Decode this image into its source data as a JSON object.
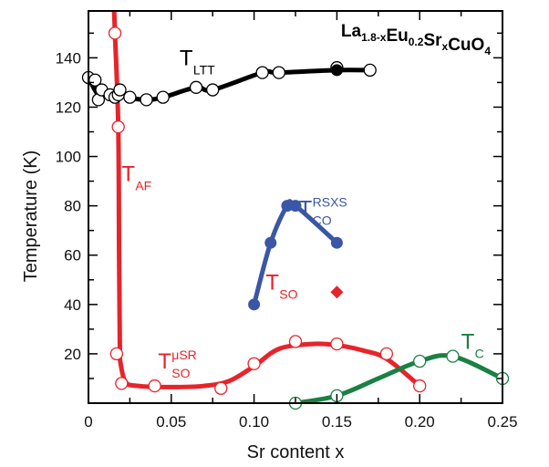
{
  "chart_data": {
    "type": "scatter",
    "title": "La1.8-xEu0.2SrxCuO4",
    "title_parts": [
      {
        "text": "La",
        "sub": "1.8-x"
      },
      {
        "text": "Eu",
        "sub": "0.2"
      },
      {
        "text": "Sr",
        "sub": "x"
      },
      {
        "text": "CuO",
        "sub": "4"
      }
    ],
    "xlabel": "Sr content x",
    "ylabel": "Temperature (K)",
    "xlim": [
      0,
      0.25
    ],
    "ylim": [
      0,
      159
    ],
    "x_ticks": [
      0,
      0.05,
      0.1,
      0.15,
      0.2,
      0.25
    ],
    "x_tick_labels": [
      "0",
      "0.05",
      "0.10",
      "0.15",
      "0.20",
      "0.25"
    ],
    "x_minor_step": 0.025,
    "y_ticks": [
      20,
      40,
      60,
      80,
      100,
      120,
      140
    ],
    "y_tick_labels": [
      "20",
      "40",
      "60",
      "80",
      "100",
      "120",
      "140"
    ],
    "y_minor_step": 10,
    "grid": false,
    "legend": "none",
    "series": [
      {
        "name": "T_LTT",
        "color": "#000000",
        "marker": "open-circle",
        "line": "smooth",
        "x": [
          0.0,
          0.004,
          0.006,
          0.008,
          0.013,
          0.016,
          0.018,
          0.019,
          0.025,
          0.035,
          0.045,
          0.065,
          0.075,
          0.105,
          0.115,
          0.15,
          0.17
        ],
        "y": [
          132,
          131,
          123,
          127,
          125,
          124,
          125,
          127,
          124,
          123,
          124,
          128,
          127,
          134,
          134,
          136,
          135
        ],
        "line_x": [
          0.0,
          0.006,
          0.013,
          0.019,
          0.025,
          0.035,
          0.045,
          0.065,
          0.075,
          0.105,
          0.115,
          0.15,
          0.17
        ],
        "line_y": [
          132,
          125,
          125,
          127,
          124,
          123,
          124,
          128,
          127,
          134,
          134,
          135,
          135
        ]
      },
      {
        "name": "T_LTT (filled)",
        "color": "#000000",
        "marker": "filled-circle",
        "line": "none",
        "x": [
          0.15
        ],
        "y": [
          135
        ]
      },
      {
        "name": "T_AF",
        "color": "#e8232a",
        "marker": "open-circle",
        "line": "smooth",
        "x": [
          0.016,
          0.018
        ],
        "y": [
          150,
          112
        ],
        "line_x": [
          0.0155,
          0.016,
          0.018,
          0.0185,
          0.019
        ],
        "line_y": [
          159,
          150,
          112,
          60,
          20
        ]
      },
      {
        "name": "T_SO^μSR",
        "color": "#e8232a",
        "marker": "open-circle",
        "line": "smooth",
        "x": [
          0.017,
          0.02,
          0.04,
          0.08,
          0.1,
          0.125,
          0.15,
          0.18,
          0.2
        ],
        "y": [
          20,
          8,
          7,
          6,
          16,
          25,
          24,
          20,
          7
        ],
        "line_x": [
          0.0185,
          0.022,
          0.03,
          0.05,
          0.07,
          0.085,
          0.1,
          0.115,
          0.135,
          0.15,
          0.165,
          0.18,
          0.2
        ],
        "line_y": [
          20,
          9,
          7,
          6.5,
          7,
          9,
          15,
          22,
          24,
          23.5,
          21.5,
          18,
          7
        ]
      },
      {
        "name": "T_CO^RSXS",
        "color": "#3a56a6",
        "marker": "filled-circle",
        "line": "smooth",
        "x": [
          0.1,
          0.11,
          0.12,
          0.125,
          0.15
        ],
        "y": [
          40,
          65,
          80,
          80,
          65
        ],
        "line_x": [
          0.1,
          0.11,
          0.12,
          0.125,
          0.15
        ],
        "line_y": [
          40,
          65,
          80,
          80,
          65
        ]
      },
      {
        "name": "T_SO",
        "color": "#e8232a",
        "marker": "filled-diamond",
        "line": "none",
        "x": [
          0.15
        ],
        "y": [
          45
        ]
      },
      {
        "name": "T_C",
        "color": "#1a8043",
        "marker": "open-circle",
        "line": "smooth",
        "x": [
          0.125,
          0.15,
          0.2,
          0.22,
          0.25
        ],
        "y": [
          0,
          3,
          17,
          19,
          10
        ],
        "line_x": [
          0.125,
          0.15,
          0.175,
          0.2,
          0.22,
          0.25
        ],
        "line_y": [
          0,
          3,
          10,
          17,
          19,
          10
        ]
      }
    ],
    "annotations": [
      {
        "id": "ltt",
        "main": "T",
        "sub": "LTT",
        "sup": "",
        "color": "#000000",
        "x": 0.055,
        "y": 137
      },
      {
        "id": "af",
        "main": "T",
        "sub": "AF",
        "sup": "",
        "color": "#e8232a",
        "x": 0.02,
        "y": 90
      },
      {
        "id": "co",
        "main": "T",
        "sub": "CO",
        "sup": "RSXS",
        "color": "#3a56a6",
        "x": 0.127,
        "y": 76
      },
      {
        "id": "so",
        "main": "T",
        "sub": "SO",
        "sup": "",
        "color": "#e8232a",
        "x": 0.107,
        "y": 46
      },
      {
        "id": "somusr",
        "main": "T",
        "sub": "SO",
        "sup": "μSR",
        "color": "#e8232a",
        "x": 0.042,
        "y": 14
      },
      {
        "id": "tc",
        "main": "T",
        "sub": "C",
        "sup": "",
        "color": "#1a8043",
        "x": 0.225,
        "y": 22
      }
    ]
  }
}
